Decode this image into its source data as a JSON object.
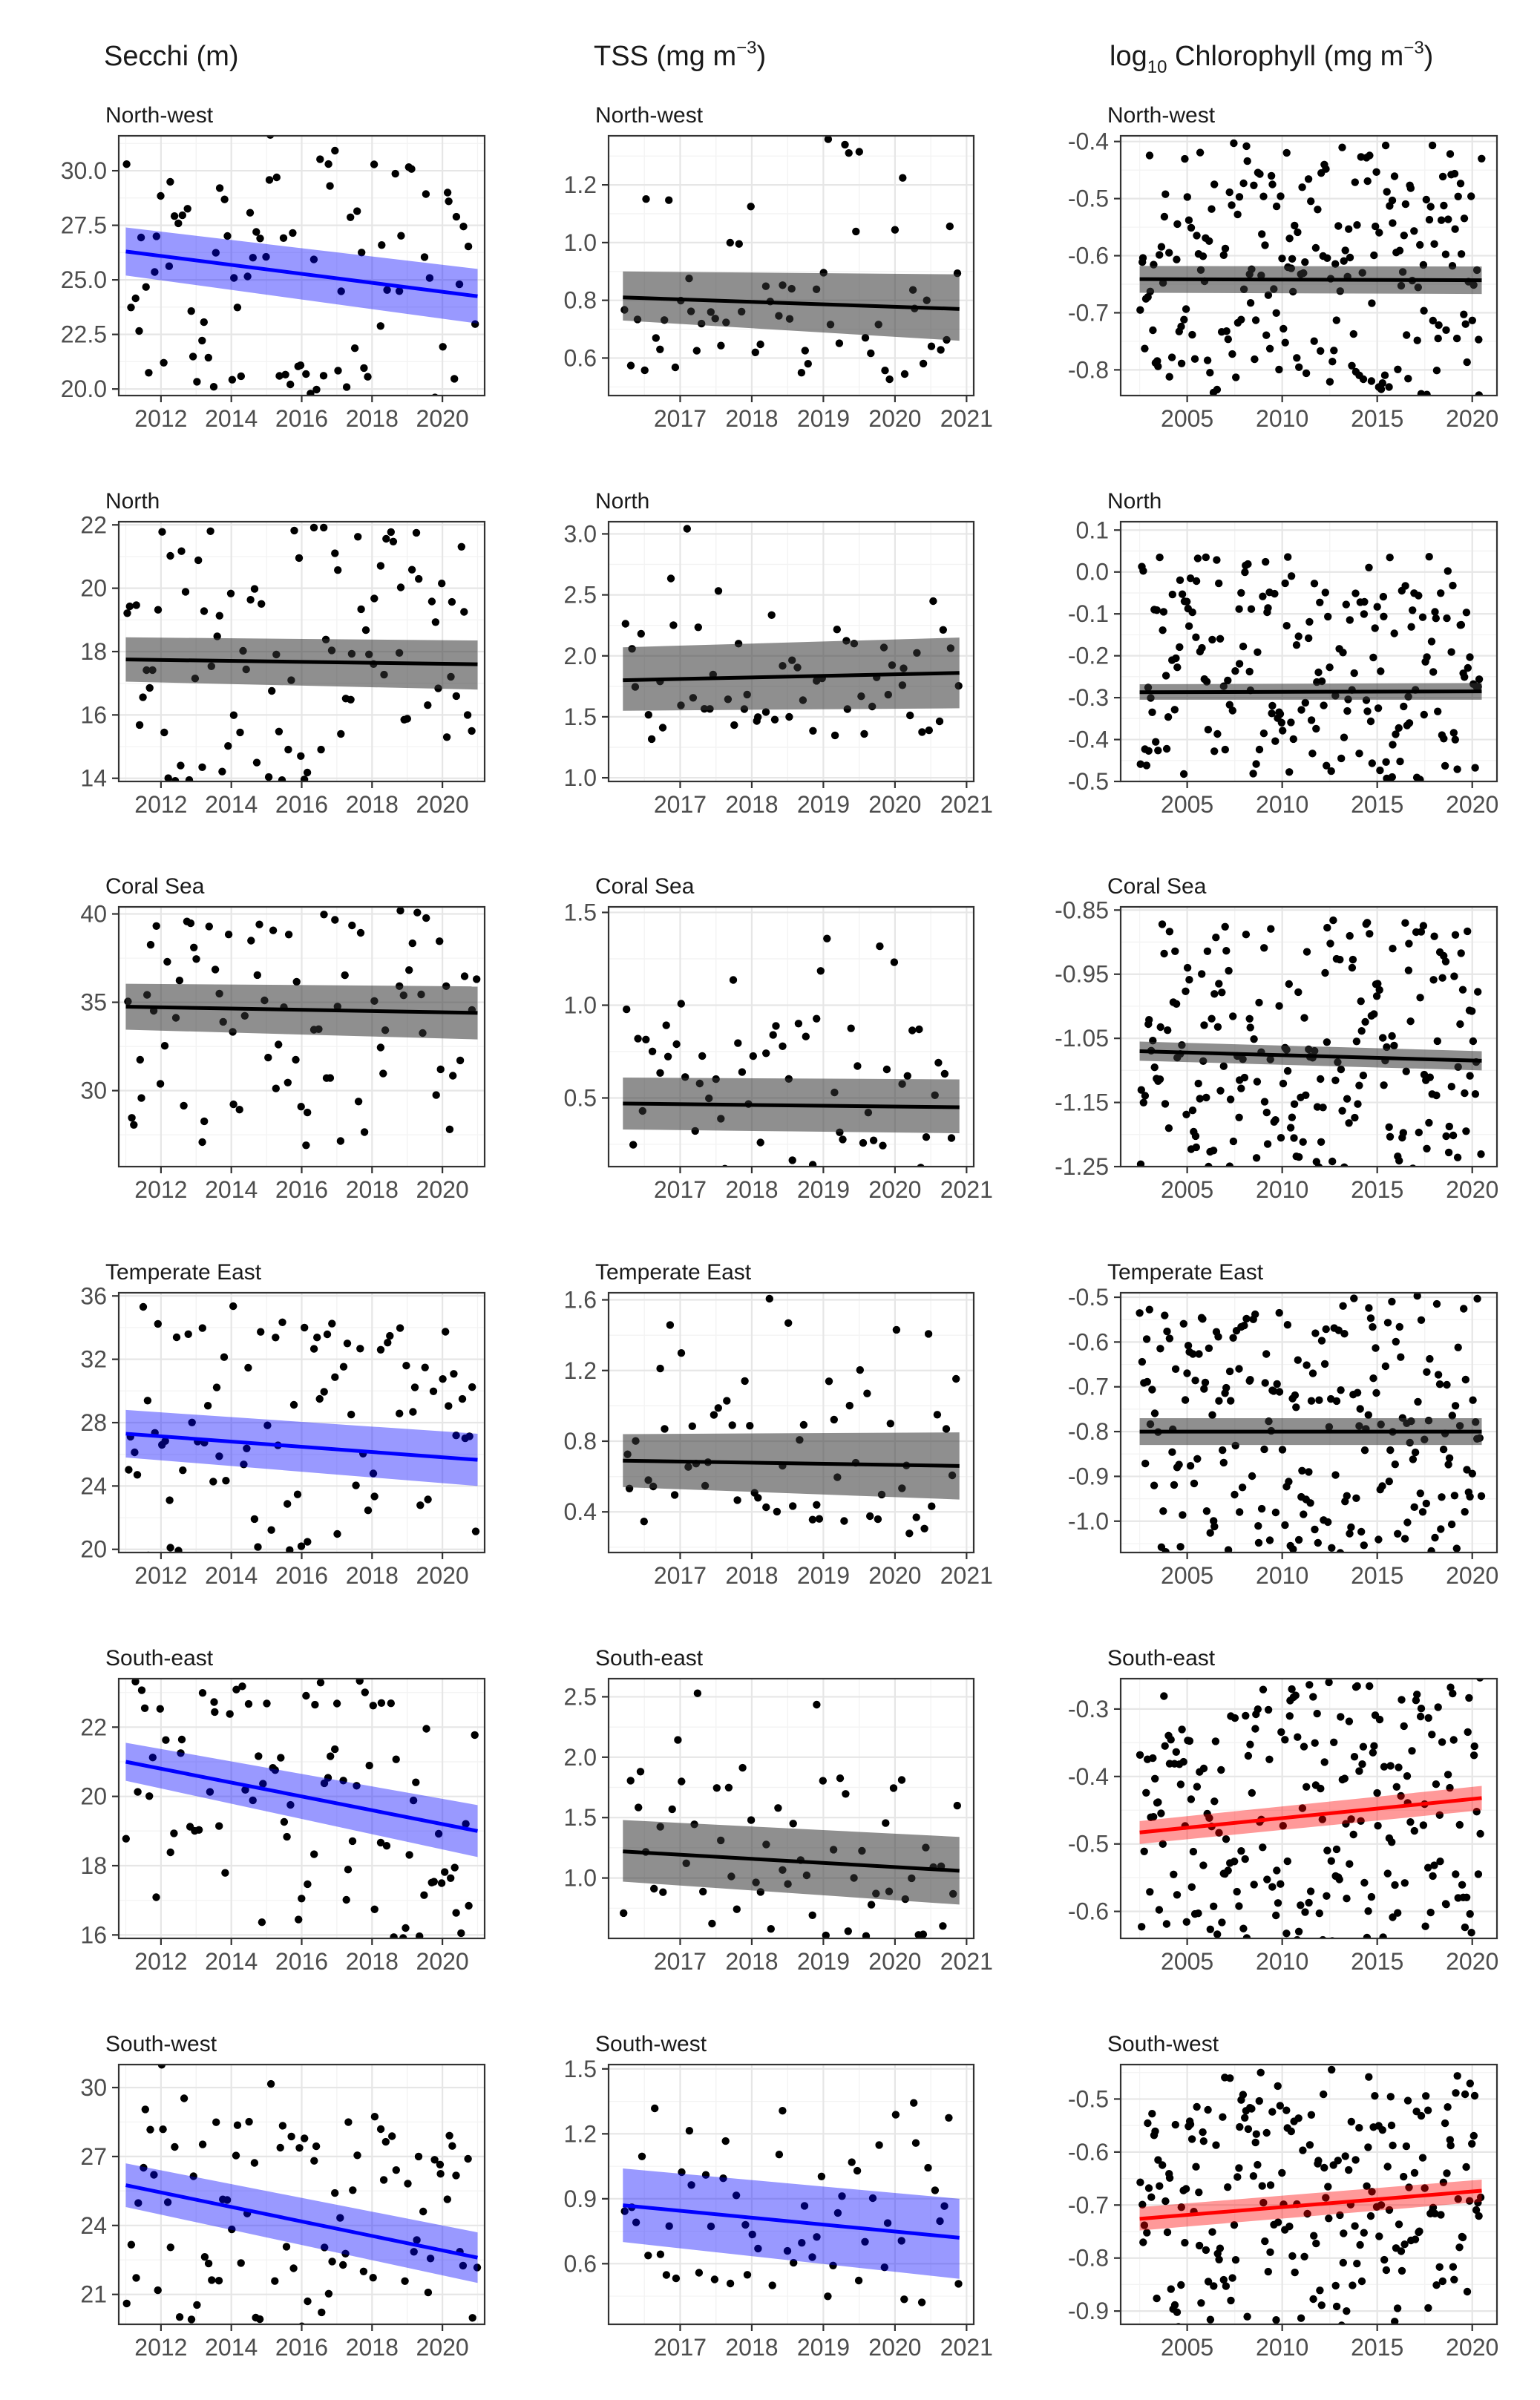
{
  "columns": [
    {
      "title": "Secchi (m)"
    },
    {
      "title_main": "TSS (mg m",
      "title_exp": "−3",
      "title_end": ")"
    },
    {
      "title_pre": "log",
      "title_sub": "10",
      "title_main": " Chlorophyll (mg m",
      "title_exp": "−3",
      "title_end": ")"
    }
  ],
  "colors": {
    "decreasing": "#0000ff",
    "increasing": "#ff0000",
    "no_trend": "#000000",
    "points": "#000000"
  },
  "chart_data": [
    {
      "type": "scatter",
      "region": "North-west",
      "variable": "Secchi",
      "trend": "decreasing",
      "xlim": [
        2010.8,
        2021.2
      ],
      "ylim": [
        19.7,
        31.6
      ],
      "xticks": [
        2012,
        2014,
        2016,
        2018,
        2020
      ],
      "yticks": [
        20.0,
        22.5,
        25.0,
        27.5,
        30.0
      ],
      "ytick_labels": [
        "20.0",
        "22.5",
        "25.0",
        "27.5",
        "30.0"
      ],
      "fit": {
        "x": [
          2011.0,
          2021.0
        ],
        "y": [
          26.3,
          24.25
        ],
        "lower": [
          25.2,
          23.0
        ],
        "upper": [
          27.4,
          25.5
        ]
      }
    },
    {
      "type": "scatter",
      "region": "North-west",
      "variable": "TSS",
      "trend": "none",
      "xlim": [
        2016.0,
        2021.1
      ],
      "ylim": [
        0.47,
        1.37
      ],
      "xticks": [
        2017,
        2018,
        2019,
        2020,
        2021
      ],
      "yticks": [
        0.6,
        0.8,
        1.0,
        1.2
      ],
      "ytick_labels": [
        "0.6",
        "0.8",
        "1.0",
        "1.2"
      ],
      "fit": {
        "x": [
          2016.2,
          2020.9
        ],
        "y": [
          0.81,
          0.77
        ],
        "lower": [
          0.73,
          0.66
        ],
        "upper": [
          0.9,
          0.89
        ]
      }
    },
    {
      "type": "scatter",
      "region": "North-west",
      "variable": "Chlorophyll",
      "trend": "none",
      "xlim": [
        2001.5,
        2021.3
      ],
      "ylim": [
        -0.845,
        -0.39
      ],
      "xticks": [
        2005,
        2010,
        2015,
        2020
      ],
      "yticks": [
        -0.8,
        -0.7,
        -0.6,
        -0.5,
        -0.4
      ],
      "ytick_labels": [
        "-0.8",
        "-0.7",
        "-0.6",
        "-0.5",
        "-0.4"
      ],
      "fit": {
        "x": [
          2002.5,
          2020.5
        ],
        "y": [
          -0.641,
          -0.643
        ],
        "lower": [
          -0.665,
          -0.667
        ],
        "upper": [
          -0.618,
          -0.619
        ]
      }
    },
    {
      "type": "scatter",
      "region": "North",
      "variable": "Secchi",
      "trend": "none",
      "xlim": [
        2010.8,
        2021.2
      ],
      "ylim": [
        13.9,
        22.1
      ],
      "xticks": [
        2012,
        2014,
        2016,
        2018,
        2020
      ],
      "yticks": [
        14,
        16,
        18,
        20,
        22
      ],
      "ytick_labels": [
        "14",
        "16",
        "18",
        "20",
        "22"
      ],
      "fit": {
        "x": [
          2011.0,
          2021.0
        ],
        "y": [
          17.75,
          17.6
        ],
        "lower": [
          17.05,
          16.8
        ],
        "upper": [
          18.45,
          18.35
        ]
      }
    },
    {
      "type": "scatter",
      "region": "North",
      "variable": "TSS",
      "trend": "none",
      "xlim": [
        2016.0,
        2021.1
      ],
      "ylim": [
        0.97,
        3.1
      ],
      "xticks": [
        2017,
        2018,
        2019,
        2020,
        2021
      ],
      "yticks": [
        1.0,
        1.5,
        2.0,
        2.5,
        3.0
      ],
      "ytick_labels": [
        "1.0",
        "1.5",
        "2.0",
        "2.5",
        "3.0"
      ],
      "fit": {
        "x": [
          2016.2,
          2020.9
        ],
        "y": [
          1.8,
          1.86
        ],
        "lower": [
          1.55,
          1.57
        ],
        "upper": [
          2.07,
          2.15
        ]
      }
    },
    {
      "type": "scatter",
      "region": "North",
      "variable": "Chlorophyll",
      "trend": "none",
      "xlim": [
        2001.5,
        2021.3
      ],
      "ylim": [
        -0.5,
        0.12
      ],
      "xticks": [
        2005,
        2010,
        2015,
        2020
      ],
      "yticks": [
        -0.5,
        -0.4,
        -0.3,
        -0.2,
        -0.1,
        0.0,
        0.1
      ],
      "ytick_labels": [
        "-0.5",
        "-0.4",
        "-0.3",
        "-0.2",
        "-0.1",
        "0.0",
        "0.1"
      ],
      "fit": {
        "x": [
          2002.5,
          2020.5
        ],
        "y": [
          -0.287,
          -0.285
        ],
        "lower": [
          -0.305,
          -0.305
        ],
        "upper": [
          -0.268,
          -0.265
        ]
      }
    },
    {
      "type": "scatter",
      "region": "Coral Sea",
      "variable": "Secchi",
      "trend": "none",
      "xlim": [
        2010.8,
        2021.2
      ],
      "ylim": [
        25.7,
        40.4
      ],
      "xticks": [
        2012,
        2014,
        2016,
        2018,
        2020
      ],
      "yticks": [
        30,
        35,
        40
      ],
      "ytick_labels": [
        "30",
        "35",
        "40"
      ],
      "fit": {
        "x": [
          2011.0,
          2021.0
        ],
        "y": [
          34.75,
          34.4
        ],
        "lower": [
          33.45,
          32.9
        ],
        "upper": [
          36.05,
          35.9
        ]
      }
    },
    {
      "type": "scatter",
      "region": "Coral Sea",
      "variable": "TSS",
      "trend": "none",
      "xlim": [
        2016.0,
        2021.1
      ],
      "ylim": [
        0.13,
        1.53
      ],
      "xticks": [
        2017,
        2018,
        2019,
        2020,
        2021
      ],
      "yticks": [
        0.5,
        1.0,
        1.5
      ],
      "ytick_labels": [
        "0.5",
        "1.0",
        "1.5"
      ],
      "fit": {
        "x": [
          2016.2,
          2020.9
        ],
        "y": [
          0.47,
          0.45
        ],
        "lower": [
          0.33,
          0.31
        ],
        "upper": [
          0.61,
          0.6
        ]
      }
    },
    {
      "type": "scatter",
      "region": "Coral Sea",
      "variable": "Chlorophyll",
      "trend": "none",
      "xlim": [
        2001.5,
        2021.3
      ],
      "ylim": [
        -1.25,
        -0.845
      ],
      "xticks": [
        2005,
        2010,
        2015,
        2020
      ],
      "yticks": [
        -1.25,
        -1.15,
        -1.05,
        -0.95,
        -0.85
      ],
      "ytick_labels": [
        "-1.25",
        "-1.15",
        "-1.05",
        "-0.95",
        "-0.85"
      ],
      "fit": {
        "x": [
          2002.5,
          2020.5
        ],
        "y": [
          -1.07,
          -1.085
        ],
        "lower": [
          -1.085,
          -1.1
        ],
        "upper": [
          -1.055,
          -1.07
        ]
      }
    },
    {
      "type": "scatter",
      "region": "Temperate East",
      "variable": "Secchi",
      "trend": "decreasing",
      "xlim": [
        2010.8,
        2021.2
      ],
      "ylim": [
        19.8,
        36.2
      ],
      "xticks": [
        2012,
        2014,
        2016,
        2018,
        2020
      ],
      "yticks": [
        20,
        24,
        28,
        32,
        36
      ],
      "ytick_labels": [
        "20",
        "24",
        "28",
        "32",
        "36"
      ],
      "fit": {
        "x": [
          2011.0,
          2021.0
        ],
        "y": [
          27.3,
          25.65
        ],
        "lower": [
          25.8,
          24.0
        ],
        "upper": [
          28.8,
          27.3
        ]
      }
    },
    {
      "type": "scatter",
      "region": "Temperate East",
      "variable": "TSS",
      "trend": "none",
      "xlim": [
        2016.0,
        2021.1
      ],
      "ylim": [
        0.17,
        1.64
      ],
      "xticks": [
        2017,
        2018,
        2019,
        2020,
        2021
      ],
      "yticks": [
        0.4,
        0.8,
        1.2,
        1.6
      ],
      "ytick_labels": [
        "0.4",
        "0.8",
        "1.2",
        "1.6"
      ],
      "fit": {
        "x": [
          2016.2,
          2020.9
        ],
        "y": [
          0.69,
          0.66
        ],
        "lower": [
          0.54,
          0.47
        ],
        "upper": [
          0.84,
          0.85
        ]
      }
    },
    {
      "type": "scatter",
      "region": "Temperate East",
      "variable": "Chlorophyll",
      "trend": "none",
      "xlim": [
        2001.5,
        2021.3
      ],
      "ylim": [
        -1.07,
        -0.49
      ],
      "xticks": [
        2005,
        2010,
        2015,
        2020
      ],
      "yticks": [
        -1.0,
        -0.9,
        -0.8,
        -0.7,
        -0.6,
        -0.5
      ],
      "ytick_labels": [
        "-1.0",
        "-0.9",
        "-0.8",
        "-0.7",
        "-0.6",
        "-0.5"
      ],
      "fit": {
        "x": [
          2002.5,
          2020.5
        ],
        "y": [
          -0.8,
          -0.8
        ],
        "lower": [
          -0.83,
          -0.83
        ],
        "upper": [
          -0.77,
          -0.77
        ]
      }
    },
    {
      "type": "scatter",
      "region": "South-east",
      "variable": "Secchi",
      "trend": "decreasing",
      "xlim": [
        2010.8,
        2021.2
      ],
      "ylim": [
        15.9,
        23.4
      ],
      "xticks": [
        2012,
        2014,
        2016,
        2018,
        2020
      ],
      "yticks": [
        16,
        18,
        20,
        22
      ],
      "ytick_labels": [
        "16",
        "18",
        "20",
        "22"
      ],
      "fit": {
        "x": [
          2011.0,
          2021.0
        ],
        "y": [
          21.0,
          19.0
        ],
        "lower": [
          20.45,
          18.25
        ],
        "upper": [
          21.55,
          19.75
        ]
      }
    },
    {
      "type": "scatter",
      "region": "South-east",
      "variable": "TSS",
      "trend": "none",
      "xlim": [
        2016.0,
        2021.1
      ],
      "ylim": [
        0.5,
        2.65
      ],
      "xticks": [
        2017,
        2018,
        2019,
        2020,
        2021
      ],
      "yticks": [
        1.0,
        1.5,
        2.0,
        2.5
      ],
      "ytick_labels": [
        "1.0",
        "1.5",
        "2.0",
        "2.5"
      ],
      "fit": {
        "x": [
          2016.2,
          2020.9
        ],
        "y": [
          1.22,
          1.06
        ],
        "lower": [
          0.97,
          0.78
        ],
        "upper": [
          1.48,
          1.34
        ]
      }
    },
    {
      "type": "scatter",
      "region": "South-east",
      "variable": "Chlorophyll",
      "trend": "increasing",
      "xlim": [
        2001.5,
        2021.3
      ],
      "ylim": [
        -0.64,
        -0.255
      ],
      "xticks": [
        2005,
        2010,
        2015,
        2020
      ],
      "yticks": [
        -0.6,
        -0.5,
        -0.4,
        -0.3
      ],
      "ytick_labels": [
        "-0.6",
        "-0.5",
        "-0.4",
        "-0.3"
      ],
      "fit": {
        "x": [
          2002.5,
          2020.5
        ],
        "y": [
          -0.483,
          -0.432
        ],
        "lower": [
          -0.5,
          -0.45
        ],
        "upper": [
          -0.466,
          -0.414
        ]
      }
    },
    {
      "type": "scatter",
      "region": "South-west",
      "variable": "Secchi",
      "trend": "decreasing",
      "xlim": [
        2010.8,
        2021.2
      ],
      "ylim": [
        19.7,
        31.0
      ],
      "xticks": [
        2012,
        2014,
        2016,
        2018,
        2020
      ],
      "yticks": [
        21,
        24,
        27,
        30
      ],
      "ytick_labels": [
        "21",
        "24",
        "27",
        "30"
      ],
      "fit": {
        "x": [
          2011.0,
          2021.0
        ],
        "y": [
          25.75,
          22.6
        ],
        "lower": [
          24.8,
          21.5
        ],
        "upper": [
          26.7,
          23.7
        ]
      }
    },
    {
      "type": "scatter",
      "region": "South-west",
      "variable": "TSS",
      "trend": "decreasing",
      "xlim": [
        2016.0,
        2021.1
      ],
      "ylim": [
        0.32,
        1.52
      ],
      "xticks": [
        2017,
        2018,
        2019,
        2020,
        2021
      ],
      "yticks": [
        0.6,
        0.9,
        1.2,
        1.5
      ],
      "ytick_labels": [
        "0.6",
        "0.9",
        "1.2",
        "1.5"
      ],
      "fit": {
        "x": [
          2016.2,
          2020.9
        ],
        "y": [
          0.87,
          0.72
        ],
        "lower": [
          0.7,
          0.53
        ],
        "upper": [
          1.04,
          0.9
        ]
      }
    },
    {
      "type": "scatter",
      "region": "South-west",
      "variable": "Chlorophyll",
      "trend": "increasing",
      "xlim": [
        2001.5,
        2021.3
      ],
      "ylim": [
        -0.925,
        -0.435
      ],
      "xticks": [
        2005,
        2010,
        2015,
        2020
      ],
      "yticks": [
        -0.9,
        -0.8,
        -0.7,
        -0.6,
        -0.5
      ],
      "ytick_labels": [
        "-0.9",
        "-0.8",
        "-0.7",
        "-0.6",
        "-0.5"
      ],
      "fit": {
        "x": [
          2002.5,
          2020.5
        ],
        "y": [
          -0.726,
          -0.673
        ],
        "lower": [
          -0.748,
          -0.694
        ],
        "upper": [
          -0.704,
          -0.652
        ]
      }
    }
  ]
}
